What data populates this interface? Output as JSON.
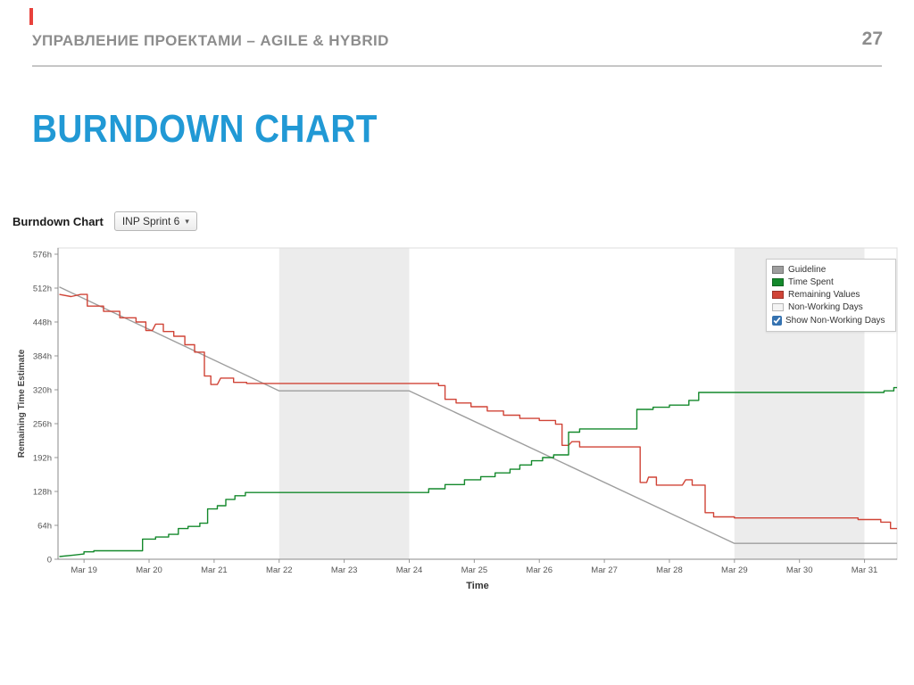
{
  "slide": {
    "header": "УПРАВЛЕНИЕ ПРОЕКТАМИ – AGILE & HYBRID",
    "page_number": "27",
    "title": "BURNDOWN CHART",
    "accent_color": "#e8413c",
    "title_color": "#2199d5"
  },
  "widget": {
    "label": "Burndown Chart",
    "sprint_selector": {
      "value": "INP Sprint 6",
      "caret": "▾"
    }
  },
  "chart_data": {
    "type": "line",
    "title": "",
    "xlabel": "Time",
    "ylabel": "Remaining Time Estimate",
    "x_ticks": [
      "Mar 19",
      "Mar 20",
      "Mar 21",
      "Mar 22",
      "Mar 23",
      "Mar 24",
      "Mar 25",
      "Mar 26",
      "Mar 27",
      "Mar 28",
      "Mar 29",
      "Mar 30",
      "Mar 31"
    ],
    "x_tick_days": [
      19,
      20,
      21,
      22,
      23,
      24,
      25,
      26,
      27,
      28,
      29,
      30,
      31
    ],
    "y_ticks": [
      "0",
      "64h",
      "128h",
      "192h",
      "256h",
      "320h",
      "384h",
      "448h",
      "512h",
      "576h"
    ],
    "y_tick_values": [
      0,
      64,
      128,
      192,
      256,
      320,
      384,
      448,
      512,
      576
    ],
    "xlim": [
      18.6,
      31.5
    ],
    "ylim": [
      0,
      576
    ],
    "grid": false,
    "band_color": "#ececec",
    "non_working_bands": [
      [
        22,
        24
      ],
      [
        29,
        31
      ]
    ],
    "series": [
      {
        "name": "Guideline",
        "color": "#9e9e9e",
        "points": [
          [
            18.62,
            514
          ],
          [
            22,
            318
          ],
          [
            24,
            318
          ],
          [
            29,
            30
          ],
          [
            31.5,
            30
          ]
        ]
      },
      {
        "name": "Remaining Values",
        "color": "#d04437",
        "points": [
          [
            18.62,
            500
          ],
          [
            18.8,
            496
          ],
          [
            18.95,
            500
          ],
          [
            19.05,
            500
          ],
          [
            19.05,
            478
          ],
          [
            19.3,
            478
          ],
          [
            19.3,
            468
          ],
          [
            19.55,
            468
          ],
          [
            19.55,
            456
          ],
          [
            19.8,
            456
          ],
          [
            19.8,
            448
          ],
          [
            19.95,
            448
          ],
          [
            19.95,
            432
          ],
          [
            20.05,
            432
          ],
          [
            20.1,
            444
          ],
          [
            20.22,
            444
          ],
          [
            20.22,
            430
          ],
          [
            20.38,
            430
          ],
          [
            20.38,
            421
          ],
          [
            20.55,
            421
          ],
          [
            20.55,
            405
          ],
          [
            20.7,
            405
          ],
          [
            20.7,
            391
          ],
          [
            20.85,
            391
          ],
          [
            20.85,
            346
          ],
          [
            20.95,
            346
          ],
          [
            20.95,
            330
          ],
          [
            21.05,
            330
          ],
          [
            21.1,
            342
          ],
          [
            21.3,
            342
          ],
          [
            21.3,
            334
          ],
          [
            21.5,
            334
          ],
          [
            21.5,
            332
          ],
          [
            24.45,
            332
          ],
          [
            24.45,
            328
          ],
          [
            24.55,
            328
          ],
          [
            24.55,
            302
          ],
          [
            24.72,
            302
          ],
          [
            24.72,
            295
          ],
          [
            24.95,
            295
          ],
          [
            24.95,
            288
          ],
          [
            25.2,
            288
          ],
          [
            25.2,
            280
          ],
          [
            25.45,
            280
          ],
          [
            25.45,
            272
          ],
          [
            25.7,
            272
          ],
          [
            25.7,
            266
          ],
          [
            26.0,
            266
          ],
          [
            26.0,
            262
          ],
          [
            26.25,
            262
          ],
          [
            26.25,
            255
          ],
          [
            26.35,
            255
          ],
          [
            26.35,
            215
          ],
          [
            26.45,
            215
          ],
          [
            26.5,
            222
          ],
          [
            26.62,
            222
          ],
          [
            26.62,
            212
          ],
          [
            27.55,
            212
          ],
          [
            27.55,
            145
          ],
          [
            27.65,
            145
          ],
          [
            27.68,
            155
          ],
          [
            27.8,
            155
          ],
          [
            27.8,
            140
          ],
          [
            28.2,
            140
          ],
          [
            28.25,
            150
          ],
          [
            28.35,
            150
          ],
          [
            28.35,
            140
          ],
          [
            28.55,
            140
          ],
          [
            28.55,
            88
          ],
          [
            28.68,
            88
          ],
          [
            28.68,
            80
          ],
          [
            29.0,
            80
          ],
          [
            29.0,
            78
          ],
          [
            30.9,
            78
          ],
          [
            30.9,
            75
          ],
          [
            31.25,
            75
          ],
          [
            31.25,
            70
          ],
          [
            31.4,
            70
          ],
          [
            31.4,
            58
          ],
          [
            31.5,
            58
          ]
        ]
      },
      {
        "name": "Time Spent",
        "color": "#14892c",
        "points": [
          [
            18.62,
            5
          ],
          [
            18.85,
            8
          ],
          [
            19.0,
            10
          ],
          [
            19.0,
            14
          ],
          [
            19.15,
            14
          ],
          [
            19.15,
            16
          ],
          [
            19.9,
            16
          ],
          [
            19.9,
            38
          ],
          [
            20.1,
            38
          ],
          [
            20.1,
            42
          ],
          [
            20.3,
            42
          ],
          [
            20.3,
            47
          ],
          [
            20.45,
            47
          ],
          [
            20.45,
            58
          ],
          [
            20.6,
            58
          ],
          [
            20.6,
            62
          ],
          [
            20.78,
            62
          ],
          [
            20.78,
            68
          ],
          [
            20.9,
            68
          ],
          [
            20.9,
            95
          ],
          [
            21.05,
            95
          ],
          [
            21.05,
            101
          ],
          [
            21.18,
            101
          ],
          [
            21.18,
            113
          ],
          [
            21.32,
            113
          ],
          [
            21.32,
            120
          ],
          [
            21.48,
            120
          ],
          [
            21.48,
            126
          ],
          [
            24.3,
            126
          ],
          [
            24.3,
            133
          ],
          [
            24.55,
            133
          ],
          [
            24.55,
            141
          ],
          [
            24.85,
            141
          ],
          [
            24.85,
            150
          ],
          [
            25.1,
            150
          ],
          [
            25.1,
            156
          ],
          [
            25.32,
            156
          ],
          [
            25.32,
            163
          ],
          [
            25.55,
            163
          ],
          [
            25.55,
            170
          ],
          [
            25.7,
            170
          ],
          [
            25.7,
            178
          ],
          [
            25.88,
            178
          ],
          [
            25.88,
            186
          ],
          [
            26.05,
            186
          ],
          [
            26.05,
            192
          ],
          [
            26.22,
            192
          ],
          [
            26.22,
            197
          ],
          [
            26.45,
            197
          ],
          [
            26.45,
            240
          ],
          [
            26.62,
            240
          ],
          [
            26.62,
            246
          ],
          [
            27.5,
            246
          ],
          [
            27.5,
            283
          ],
          [
            27.75,
            283
          ],
          [
            27.75,
            287
          ],
          [
            28.0,
            287
          ],
          [
            28.0,
            291
          ],
          [
            28.3,
            291
          ],
          [
            28.3,
            300
          ],
          [
            28.45,
            300
          ],
          [
            28.45,
            315
          ],
          [
            31.3,
            315
          ],
          [
            31.3,
            318
          ],
          [
            31.45,
            318
          ],
          [
            31.45,
            324
          ],
          [
            31.5,
            324
          ]
        ]
      }
    ],
    "legend": {
      "position": "top-right",
      "entries": [
        {
          "label": "Guideline",
          "swatch": "#9e9e9e"
        },
        {
          "label": "Time Spent",
          "swatch": "#14892c"
        },
        {
          "label": "Remaining Values",
          "swatch": "#d04437"
        },
        {
          "label": "Non-Working Days",
          "swatch": "#f4f4f4"
        }
      ],
      "checkbox": {
        "label": "Show Non-Working Days",
        "checked": true
      }
    }
  }
}
